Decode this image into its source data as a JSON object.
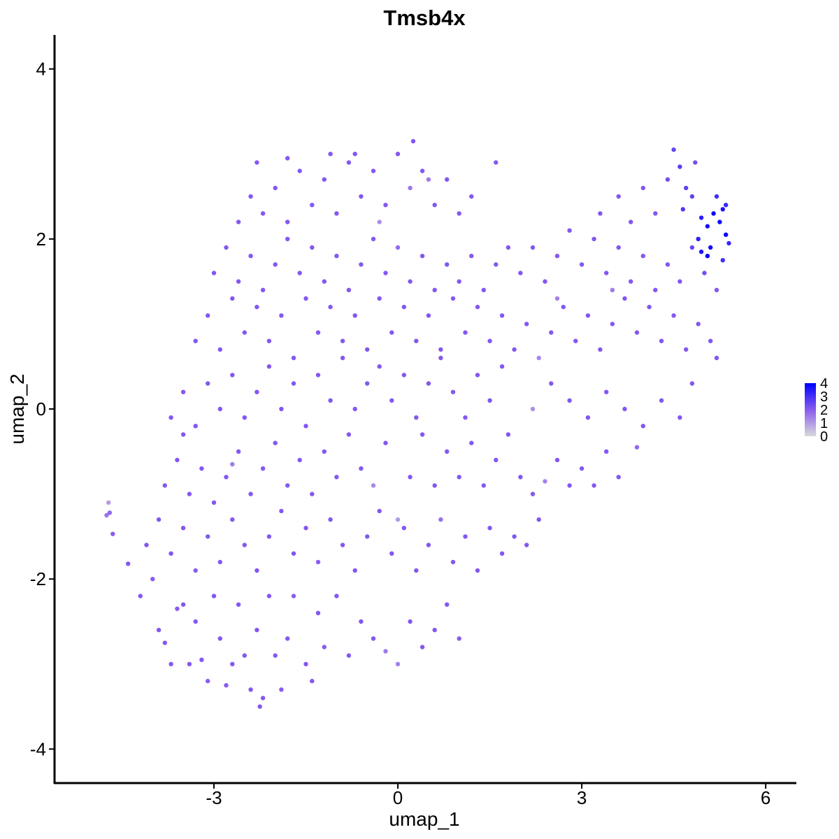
{
  "chart_data": {
    "type": "scatter",
    "title": "Tmsb4x",
    "xlabel": "umap_1",
    "ylabel": "umap_2",
    "xlim": [
      -5.6,
      6.5
    ],
    "ylim": [
      -4.4,
      4.4
    ],
    "xticks": [
      -3,
      0,
      3,
      6
    ],
    "xtick_labels": [
      "-3",
      "0",
      "3",
      "6"
    ],
    "yticks": [
      -4,
      -2,
      0,
      2,
      4
    ],
    "ytick_labels": [
      "-4",
      "-2",
      "0",
      "2",
      "4"
    ],
    "grid": false,
    "legend": {
      "placement": "right",
      "labels": [
        "4",
        "3",
        "2",
        "1",
        "0"
      ],
      "values": [
        4,
        3,
        2,
        1,
        0
      ],
      "min": 0,
      "max": 4
    },
    "color_scale": {
      "low": "#d9d9d9",
      "mid": "#8a5cf0",
      "high": "#0000ff",
      "domain": [
        0,
        4
      ]
    },
    "points": [
      [
        -4.75,
        -1.25,
        1.6
      ],
      [
        -4.72,
        -1.1,
        1.0
      ],
      [
        -4.7,
        -1.22,
        1.8
      ],
      [
        -4.65,
        -1.47,
        2.0
      ],
      [
        -4.4,
        -1.82,
        2.1
      ],
      [
        -4.2,
        -2.2,
        2.1
      ],
      [
        -4.0,
        -2.0,
        2.0
      ],
      [
        -3.9,
        -2.6,
        2.1
      ],
      [
        -3.8,
        -2.75,
        2.1
      ],
      [
        -3.7,
        -3.0,
        2.1
      ],
      [
        -3.6,
        -2.35,
        2.0
      ],
      [
        -3.5,
        -2.3,
        2.1
      ],
      [
        -3.4,
        -3.0,
        2.1
      ],
      [
        -3.3,
        -2.5,
        2.1
      ],
      [
        -3.2,
        -2.95,
        2.1
      ],
      [
        -3.1,
        -3.2,
        2.0
      ],
      [
        -3.0,
        -2.2,
        2.1
      ],
      [
        -2.9,
        -2.7,
        2.1
      ],
      [
        -2.8,
        -3.25,
        2.0
      ],
      [
        -2.7,
        -3.0,
        2.1
      ],
      [
        -2.6,
        -2.3,
        2.1
      ],
      [
        -2.5,
        -2.9,
        2.1
      ],
      [
        -2.4,
        -3.3,
        2.1
      ],
      [
        -2.3,
        -2.6,
        2.1
      ],
      [
        -2.25,
        -3.5,
        2.1
      ],
      [
        -2.2,
        -3.4,
        2.1
      ],
      [
        -2.1,
        -2.2,
        2.1
      ],
      [
        -2.0,
        -2.9,
        2.1
      ],
      [
        -1.9,
        -3.3,
        2.0
      ],
      [
        -1.8,
        -2.7,
        2.1
      ],
      [
        -1.7,
        -2.2,
        2.0
      ],
      [
        -1.5,
        -3.0,
        2.1
      ],
      [
        -1.4,
        -3.2,
        2.1
      ],
      [
        -1.3,
        -2.4,
        2.1
      ],
      [
        -1.2,
        -2.8,
        2.0
      ],
      [
        -1.0,
        -2.2,
        2.1
      ],
      [
        -0.8,
        -2.9,
        2.1
      ],
      [
        -0.6,
        -2.5,
        2.1
      ],
      [
        -0.4,
        -2.7,
        2.1
      ],
      [
        -0.2,
        -2.85,
        1.5
      ],
      [
        0.0,
        -3.0,
        1.4
      ],
      [
        0.2,
        -2.5,
        2.1
      ],
      [
        0.4,
        -2.8,
        2.1
      ],
      [
        0.6,
        -2.6,
        2.1
      ],
      [
        0.8,
        -2.3,
        2.1
      ],
      [
        1.0,
        -2.7,
        2.0
      ],
      [
        -4.1,
        -1.6,
        2.1
      ],
      [
        -3.9,
        -1.3,
        2.1
      ],
      [
        -3.7,
        -1.7,
        2.1
      ],
      [
        -3.5,
        -1.4,
        2.1
      ],
      [
        -3.3,
        -1.9,
        2.0
      ],
      [
        -3.1,
        -1.5,
        2.1
      ],
      [
        -2.9,
        -1.8,
        2.1
      ],
      [
        -2.7,
        -1.3,
        2.1
      ],
      [
        -2.5,
        -1.6,
        2.1
      ],
      [
        -2.3,
        -1.9,
        2.1
      ],
      [
        -2.1,
        -1.5,
        2.1
      ],
      [
        -1.9,
        -1.2,
        2.1
      ],
      [
        -1.7,
        -1.7,
        2.1
      ],
      [
        -1.5,
        -1.4,
        2.1
      ],
      [
        -1.3,
        -1.8,
        2.0
      ],
      [
        -1.1,
        -1.3,
        2.1
      ],
      [
        -0.9,
        -1.6,
        2.1
      ],
      [
        -0.7,
        -1.9,
        2.1
      ],
      [
        -0.5,
        -1.5,
        2.1
      ],
      [
        -0.3,
        -1.2,
        2.1
      ],
      [
        -0.1,
        -1.7,
        2.1
      ],
      [
        0.1,
        -1.4,
        2.1
      ],
      [
        0.3,
        -1.9,
        2.1
      ],
      [
        0.5,
        -1.6,
        2.1
      ],
      [
        0.7,
        -1.3,
        1.7
      ],
      [
        0.9,
        -1.8,
        2.1
      ],
      [
        1.1,
        -1.5,
        2.1
      ],
      [
        1.3,
        -1.9,
        2.1
      ],
      [
        1.5,
        -1.4,
        2.1
      ],
      [
        1.7,
        -1.7,
        2.1
      ],
      [
        1.9,
        -1.5,
        2.1
      ],
      [
        2.1,
        -1.6,
        2.1
      ],
      [
        2.3,
        -1.3,
        2.1
      ],
      [
        0.0,
        -1.3,
        1.0
      ],
      [
        -0.4,
        -0.9,
        1.3
      ],
      [
        -3.8,
        -0.9,
        2.1
      ],
      [
        -3.6,
        -0.6,
        2.1
      ],
      [
        -3.4,
        -1.0,
        2.1
      ],
      [
        -3.2,
        -0.7,
        2.1
      ],
      [
        -3.0,
        -1.1,
        2.1
      ],
      [
        -2.8,
        -0.8,
        2.1
      ],
      [
        -2.6,
        -0.5,
        2.1
      ],
      [
        -2.4,
        -1.0,
        2.1
      ],
      [
        -2.2,
        -0.7,
        2.1
      ],
      [
        -2.0,
        -0.4,
        2.1
      ],
      [
        -1.8,
        -0.9,
        2.1
      ],
      [
        -1.6,
        -0.6,
        2.1
      ],
      [
        -1.4,
        -1.0,
        2.1
      ],
      [
        -1.2,
        -0.5,
        2.1
      ],
      [
        -1.0,
        -0.8,
        2.1
      ],
      [
        -0.8,
        -0.3,
        2.1
      ],
      [
        -0.6,
        -0.7,
        2.1
      ],
      [
        -0.2,
        -0.4,
        2.1
      ],
      [
        0.2,
        -0.8,
        2.1
      ],
      [
        0.4,
        -0.3,
        2.1
      ],
      [
        0.6,
        -0.9,
        2.1
      ],
      [
        0.8,
        -0.5,
        2.1
      ],
      [
        1.0,
        -0.8,
        2.1
      ],
      [
        1.2,
        -0.4,
        2.1
      ],
      [
        1.4,
        -0.9,
        2.1
      ],
      [
        1.6,
        -0.6,
        2.1
      ],
      [
        1.8,
        -0.3,
        2.1
      ],
      [
        2.0,
        -0.8,
        2.1
      ],
      [
        2.2,
        -1.0,
        2.1
      ],
      [
        2.4,
        -0.85,
        1.4
      ],
      [
        2.6,
        -0.6,
        2.1
      ],
      [
        2.8,
        -0.9,
        2.1
      ],
      [
        3.0,
        -0.7,
        2.1
      ],
      [
        3.2,
        -0.9,
        2.1
      ],
      [
        3.4,
        -0.5,
        2.1
      ],
      [
        3.6,
        -0.8,
        2.1
      ],
      [
        -2.7,
        -0.65,
        1.5
      ],
      [
        -3.5,
        -0.3,
        2.1
      ],
      [
        -3.7,
        -0.1,
        2.1
      ],
      [
        -3.5,
        0.2,
        2.1
      ],
      [
        -3.3,
        -0.2,
        2.1
      ],
      [
        -3.1,
        0.3,
        2.1
      ],
      [
        -2.9,
        0.0,
        2.1
      ],
      [
        -2.7,
        0.4,
        2.1
      ],
      [
        -2.5,
        -0.1,
        2.1
      ],
      [
        -2.3,
        0.2,
        2.1
      ],
      [
        -2.1,
        0.5,
        2.1
      ],
      [
        -1.9,
        0.0,
        2.1
      ],
      [
        -1.7,
        0.3,
        2.1
      ],
      [
        -1.5,
        -0.2,
        2.1
      ],
      [
        -1.3,
        0.4,
        2.1
      ],
      [
        -1.1,
        0.1,
        2.1
      ],
      [
        -0.9,
        0.6,
        2.1
      ],
      [
        -0.7,
        0.0,
        2.1
      ],
      [
        -0.5,
        0.3,
        2.1
      ],
      [
        -0.3,
        0.5,
        2.1
      ],
      [
        -0.1,
        0.1,
        2.1
      ],
      [
        0.1,
        0.4,
        2.1
      ],
      [
        0.3,
        -0.1,
        2.1
      ],
      [
        0.5,
        0.3,
        2.1
      ],
      [
        0.7,
        0.6,
        2.1
      ],
      [
        0.9,
        0.2,
        2.1
      ],
      [
        1.1,
        -0.1,
        2.1
      ],
      [
        1.3,
        0.4,
        2.1
      ],
      [
        1.5,
        0.1,
        2.1
      ],
      [
        1.7,
        0.5,
        2.1
      ],
      [
        2.2,
        0.0,
        1.2
      ],
      [
        2.5,
        0.3,
        2.1
      ],
      [
        2.8,
        0.1,
        2.1
      ],
      [
        3.1,
        -0.1,
        2.1
      ],
      [
        3.4,
        0.2,
        2.1
      ],
      [
        3.7,
        0.0,
        2.1
      ],
      [
        4.0,
        -0.2,
        2.1
      ],
      [
        4.3,
        0.1,
        2.1
      ],
      [
        4.6,
        -0.1,
        2.1
      ],
      [
        4.8,
        0.3,
        2.1
      ],
      [
        3.9,
        -0.45,
        1.8
      ],
      [
        -3.3,
        0.8,
        2.1
      ],
      [
        -3.1,
        1.1,
        2.1
      ],
      [
        -2.9,
        0.7,
        2.1
      ],
      [
        -2.7,
        1.3,
        2.1
      ],
      [
        -2.5,
        0.9,
        2.1
      ],
      [
        -2.3,
        1.2,
        2.1
      ],
      [
        -2.1,
        0.8,
        2.1
      ],
      [
        -1.9,
        1.1,
        2.1
      ],
      [
        -1.7,
        0.6,
        2.1
      ],
      [
        -1.5,
        1.3,
        2.1
      ],
      [
        -1.3,
        0.9,
        2.1
      ],
      [
        -1.1,
        1.2,
        2.1
      ],
      [
        -0.9,
        0.8,
        2.1
      ],
      [
        -0.7,
        1.1,
        2.1
      ],
      [
        -0.5,
        0.7,
        2.1
      ],
      [
        -0.3,
        1.3,
        2.1
      ],
      [
        -0.1,
        0.9,
        2.1
      ],
      [
        0.1,
        1.2,
        2.1
      ],
      [
        0.3,
        0.8,
        2.1
      ],
      [
        0.5,
        1.1,
        2.1
      ],
      [
        0.7,
        0.7,
        2.1
      ],
      [
        0.9,
        1.3,
        2.1
      ],
      [
        1.1,
        0.9,
        2.1
      ],
      [
        1.3,
        1.2,
        2.1
      ],
      [
        1.5,
        0.8,
        2.1
      ],
      [
        1.7,
        1.1,
        2.1
      ],
      [
        1.9,
        0.7,
        2.1
      ],
      [
        2.1,
        1.0,
        2.1
      ],
      [
        2.3,
        0.6,
        1.3
      ],
      [
        2.5,
        0.9,
        2.1
      ],
      [
        2.7,
        1.2,
        2.1
      ],
      [
        2.9,
        0.8,
        2.1
      ],
      [
        3.1,
        1.1,
        2.1
      ],
      [
        3.3,
        0.7,
        2.1
      ],
      [
        3.5,
        1.0,
        2.1
      ],
      [
        3.7,
        1.3,
        2.1
      ],
      [
        3.9,
        0.9,
        2.1
      ],
      [
        4.1,
        1.2,
        2.1
      ],
      [
        4.3,
        0.8,
        2.1
      ],
      [
        4.5,
        1.1,
        2.1
      ],
      [
        4.7,
        0.7,
        2.1
      ],
      [
        4.9,
        1.0,
        2.1
      ],
      [
        5.1,
        0.8,
        2.1
      ],
      [
        5.2,
        0.6,
        2.1
      ],
      [
        3.5,
        1.4,
        1.5
      ],
      [
        2.6,
        1.3,
        1.4
      ],
      [
        -3.0,
        1.6,
        2.1
      ],
      [
        -2.8,
        1.9,
        2.1
      ],
      [
        -2.6,
        1.5,
        2.1
      ],
      [
        -2.4,
        1.8,
        2.1
      ],
      [
        -2.2,
        1.4,
        2.1
      ],
      [
        -2.0,
        1.7,
        2.1
      ],
      [
        -1.8,
        2.0,
        2.1
      ],
      [
        -1.6,
        1.6,
        2.1
      ],
      [
        -1.4,
        1.9,
        2.1
      ],
      [
        -1.2,
        1.5,
        2.1
      ],
      [
        -1.0,
        1.8,
        2.1
      ],
      [
        -0.8,
        1.4,
        2.1
      ],
      [
        -0.6,
        1.7,
        2.1
      ],
      [
        -0.4,
        2.0,
        2.1
      ],
      [
        -0.2,
        1.6,
        2.1
      ],
      [
        0.0,
        1.9,
        1.8
      ],
      [
        0.2,
        1.5,
        2.1
      ],
      [
        0.4,
        1.8,
        2.1
      ],
      [
        0.6,
        1.4,
        2.1
      ],
      [
        0.8,
        1.7,
        2.1
      ],
      [
        1.0,
        1.5,
        2.1
      ],
      [
        1.2,
        1.8,
        2.1
      ],
      [
        1.4,
        1.4,
        2.1
      ],
      [
        1.6,
        1.7,
        2.1
      ],
      [
        1.8,
        1.9,
        2.1
      ],
      [
        2.0,
        1.6,
        2.1
      ],
      [
        2.2,
        1.9,
        2.1
      ],
      [
        2.4,
        1.5,
        2.1
      ],
      [
        2.6,
        1.8,
        2.1
      ],
      [
        2.8,
        2.1,
        2.1
      ],
      [
        3.0,
        1.7,
        2.1
      ],
      [
        3.2,
        2.0,
        2.1
      ],
      [
        3.4,
        1.6,
        2.1
      ],
      [
        3.6,
        1.9,
        2.1
      ],
      [
        3.8,
        1.5,
        2.1
      ],
      [
        4.0,
        1.8,
        2.1
      ],
      [
        4.2,
        1.4,
        2.1
      ],
      [
        4.4,
        1.7,
        2.1
      ],
      [
        4.6,
        1.5,
        2.1
      ],
      [
        4.8,
        1.9,
        2.5
      ],
      [
        5.0,
        1.6,
        2.3
      ],
      [
        5.2,
        1.4,
        2.1
      ],
      [
        -0.3,
        2.2,
        1.2
      ],
      [
        -2.6,
        2.2,
        2.1
      ],
      [
        -2.4,
        2.5,
        2.1
      ],
      [
        -2.2,
        2.3,
        2.1
      ],
      [
        -2.0,
        2.6,
        2.1
      ],
      [
        -1.8,
        2.2,
        2.1
      ],
      [
        -1.6,
        2.8,
        2.1
      ],
      [
        -1.4,
        2.4,
        2.1
      ],
      [
        -1.2,
        2.7,
        2.1
      ],
      [
        -1.0,
        2.3,
        2.1
      ],
      [
        -0.8,
        2.9,
        2.1
      ],
      [
        -0.6,
        2.5,
        2.1
      ],
      [
        -0.4,
        2.8,
        2.1
      ],
      [
        -0.2,
        2.4,
        2.1
      ],
      [
        0.0,
        3.0,
        2.1
      ],
      [
        0.2,
        2.6,
        1.6
      ],
      [
        0.4,
        2.8,
        2.1
      ],
      [
        0.6,
        2.4,
        2.1
      ],
      [
        0.8,
        2.7,
        2.1
      ],
      [
        1.0,
        2.3,
        2.1
      ],
      [
        1.2,
        2.5,
        2.1
      ],
      [
        -2.3,
        2.9,
        2.1
      ],
      [
        -1.8,
        2.95,
        2.1
      ],
      [
        -1.1,
        3.0,
        2.1
      ],
      [
        -0.7,
        3.0,
        2.1
      ],
      [
        0.25,
        3.15,
        2.1
      ],
      [
        1.6,
        2.9,
        2.1
      ],
      [
        0.5,
        2.7,
        1.5
      ],
      [
        3.3,
        2.3,
        2.1
      ],
      [
        3.6,
        2.5,
        2.1
      ],
      [
        3.8,
        2.2,
        2.1
      ],
      [
        4.0,
        2.6,
        2.1
      ],
      [
        4.2,
        2.3,
        2.1
      ],
      [
        4.4,
        2.7,
        2.3
      ],
      [
        4.5,
        3.05,
        2.5
      ],
      [
        4.6,
        2.85,
        2.7
      ],
      [
        4.8,
        2.5,
        2.6
      ],
      [
        4.95,
        2.25,
        3.4
      ],
      [
        5.05,
        2.15,
        3.7
      ],
      [
        5.15,
        2.3,
        4.0
      ],
      [
        5.25,
        2.2,
        3.8
      ],
      [
        5.3,
        2.35,
        3.6
      ],
      [
        5.35,
        2.05,
        3.9
      ],
      [
        5.1,
        1.9,
        3.7
      ],
      [
        4.95,
        1.85,
        3.5
      ],
      [
        5.05,
        1.8,
        3.9
      ],
      [
        4.9,
        2.0,
        3.3
      ],
      [
        5.2,
        2.5,
        3.0
      ],
      [
        5.35,
        2.4,
        3.2
      ],
      [
        4.7,
        2.6,
        2.6
      ],
      [
        4.85,
        2.9,
        2.3
      ],
      [
        4.65,
        2.35,
        2.8
      ],
      [
        5.4,
        1.95,
        3.2
      ],
      [
        5.3,
        1.75,
        3.0
      ]
    ]
  }
}
